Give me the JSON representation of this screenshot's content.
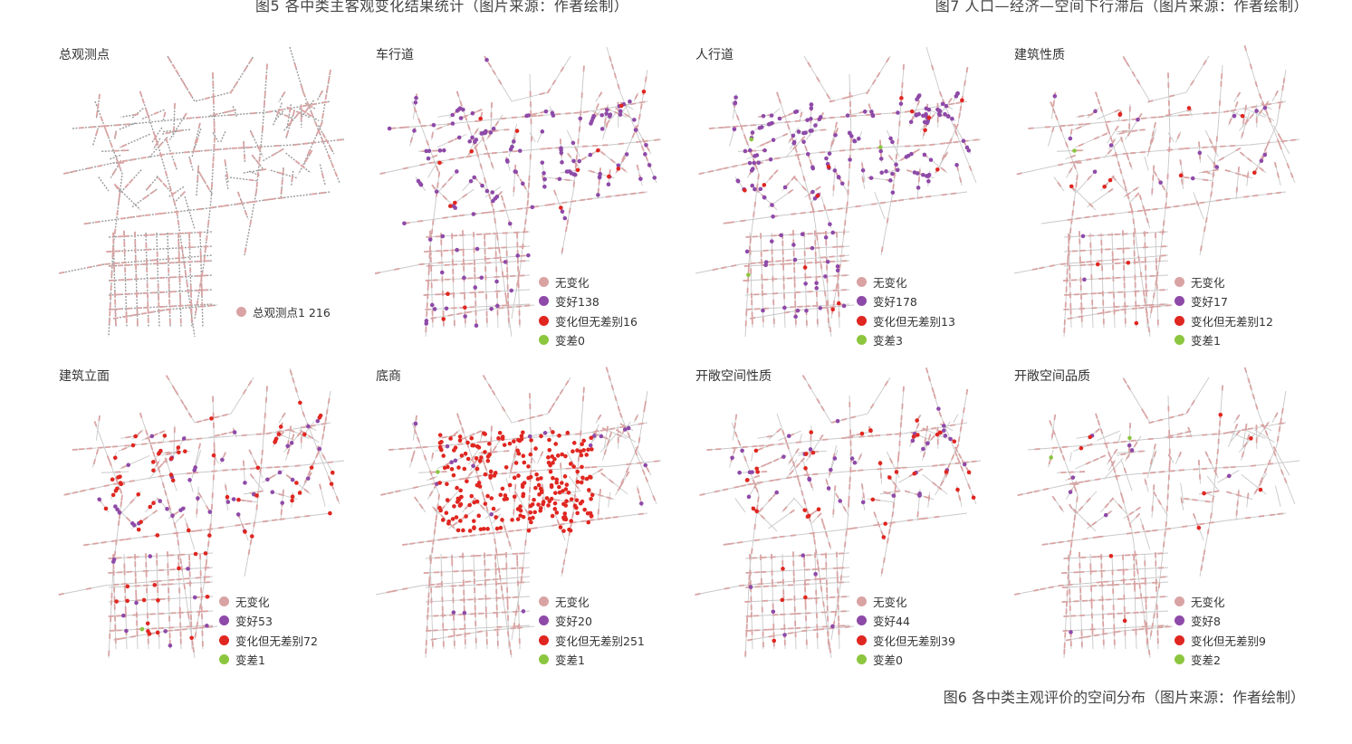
{
  "captions": {
    "fig5": "图5  各中类主客观变化结果统计（图片来源：作者绘制）",
    "fig7": "图7  人口—经济—空间下行滞后（图片来源：作者绘制）",
    "fig6": "图6  各中类主观评价的空间分布（图片来源：作者绘制）"
  },
  "colors": {
    "no_change": "#d9a3a3",
    "better": "#8e4aa8",
    "changed_no_diff": "#e02620",
    "worse": "#8cc63f",
    "road": "#c8c8c8",
    "observation_gray": "#9a9a9a"
  },
  "panels": [
    {
      "title": "总观测点",
      "legend": [
        {
          "label": "总观测点1 216",
          "color_key": "no_change"
        }
      ]
    },
    {
      "title": "车行道",
      "legend": [
        {
          "label": "无变化",
          "color_key": "no_change"
        },
        {
          "label": "变好138",
          "color_key": "better"
        },
        {
          "label": "变化但无差别16",
          "color_key": "changed_no_diff"
        },
        {
          "label": "变差0",
          "color_key": "worse"
        }
      ],
      "counts": {
        "better": 138,
        "changed_no_diff": 16,
        "worse": 0
      }
    },
    {
      "title": "人行道",
      "legend": [
        {
          "label": "无变化",
          "color_key": "no_change"
        },
        {
          "label": "变好178",
          "color_key": "better"
        },
        {
          "label": "变化但无差别13",
          "color_key": "changed_no_diff"
        },
        {
          "label": "变差3",
          "color_key": "worse"
        }
      ],
      "counts": {
        "better": 178,
        "changed_no_diff": 13,
        "worse": 3
      }
    },
    {
      "title": "建筑性质",
      "legend": [
        {
          "label": "无变化",
          "color_key": "no_change"
        },
        {
          "label": "变好17",
          "color_key": "better"
        },
        {
          "label": "变化但无差别12",
          "color_key": "changed_no_diff"
        },
        {
          "label": "变差1",
          "color_key": "worse"
        }
      ],
      "counts": {
        "better": 17,
        "changed_no_diff": 12,
        "worse": 1
      }
    },
    {
      "title": "建筑立面",
      "legend": [
        {
          "label": "无变化",
          "color_key": "no_change"
        },
        {
          "label": "变好53",
          "color_key": "better"
        },
        {
          "label": "变化但无差别72",
          "color_key": "changed_no_diff"
        },
        {
          "label": "变差1",
          "color_key": "worse"
        }
      ],
      "counts": {
        "better": 53,
        "changed_no_diff": 72,
        "worse": 1
      }
    },
    {
      "title": "底商",
      "legend": [
        {
          "label": "无变化",
          "color_key": "no_change"
        },
        {
          "label": "变好20",
          "color_key": "better"
        },
        {
          "label": "变化但无差别251",
          "color_key": "changed_no_diff"
        },
        {
          "label": "变差1",
          "color_key": "worse"
        }
      ],
      "counts": {
        "better": 20,
        "changed_no_diff": 251,
        "worse": 1
      }
    },
    {
      "title": "开敞空间性质",
      "legend": [
        {
          "label": "无变化",
          "color_key": "no_change"
        },
        {
          "label": "变好44",
          "color_key": "better"
        },
        {
          "label": "变化但无差别39",
          "color_key": "changed_no_diff"
        },
        {
          "label": "变差0",
          "color_key": "worse"
        }
      ],
      "counts": {
        "better": 44,
        "changed_no_diff": 39,
        "worse": 0
      }
    },
    {
      "title": "开敞空间品质",
      "legend": [
        {
          "label": "无变化",
          "color_key": "no_change"
        },
        {
          "label": "变好8",
          "color_key": "better"
        },
        {
          "label": "变化但无差别9",
          "color_key": "changed_no_diff"
        },
        {
          "label": "变差2",
          "color_key": "worse"
        }
      ],
      "counts": {
        "better": 8,
        "changed_no_diff": 9,
        "worse": 2
      }
    }
  ]
}
